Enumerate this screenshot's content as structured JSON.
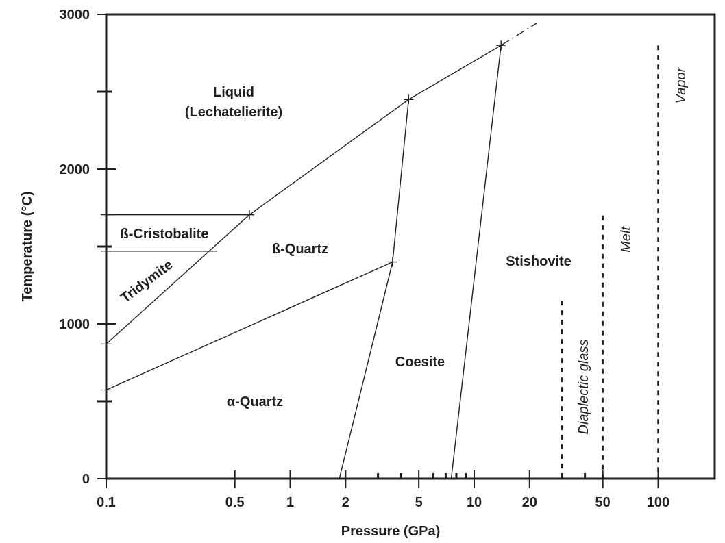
{
  "chart_data": {
    "type": "line",
    "title": "",
    "xlabel": "Pressure (GPa)",
    "ylabel": "Temperature (°C)",
    "xscale": "log",
    "xlim": [
      0.1,
      300
    ],
    "ylim": [
      0,
      3000
    ],
    "grid": false,
    "legend": null,
    "x_ticks": [
      {
        "value": 0.1,
        "label": "0.1"
      },
      {
        "value": 0.5,
        "label": "0.5"
      },
      {
        "value": 1,
        "label": "1"
      },
      {
        "value": 2,
        "label": "2"
      },
      {
        "value": 3,
        "label": ""
      },
      {
        "value": 4,
        "label": ""
      },
      {
        "value": 5,
        "label": "5"
      },
      {
        "value": 6,
        "label": ""
      },
      {
        "value": 7,
        "label": ""
      },
      {
        "value": 8,
        "label": ""
      },
      {
        "value": 9,
        "label": ""
      },
      {
        "value": 10,
        "label": "10"
      },
      {
        "value": 20,
        "label": "20"
      },
      {
        "value": 30,
        "label": ""
      },
      {
        "value": 40,
        "label": ""
      },
      {
        "value": 50,
        "label": "50"
      },
      {
        "value": 100,
        "label": "100"
      }
    ],
    "y_ticks": [
      {
        "value": 0,
        "label": "0"
      },
      {
        "value": 500,
        "label": ""
      },
      {
        "value": 1000,
        "label": "1000"
      },
      {
        "value": 1500,
        "label": ""
      },
      {
        "value": 2000,
        "label": "2000"
      },
      {
        "value": 2500,
        "label": ""
      },
      {
        "value": 3000,
        "label": "3000"
      }
    ],
    "y_minor_marks": [
      573,
      870,
      1470,
      1705
    ],
    "phase_boundaries": [
      {
        "name": "liquid-cristobalite/quartz melting curve",
        "style": "solid",
        "points": [
          [
            0.1,
            1705
          ],
          [
            0.6,
            1705
          ],
          [
            4.4,
            2450
          ],
          [
            14,
            2800
          ]
        ]
      },
      {
        "name": "melting curve extrapolation",
        "style": "dashdot",
        "points": [
          [
            14,
            2800
          ],
          [
            22,
            2945
          ]
        ]
      },
      {
        "name": "cristobalite-tridymite",
        "style": "solid",
        "points": [
          [
            0.1,
            1470
          ],
          [
            0.4,
            1470
          ]
        ]
      },
      {
        "name": "tridymite/cristobalite-beta-quartz",
        "style": "solid",
        "points": [
          [
            0.1,
            870
          ],
          [
            0.6,
            1705
          ]
        ]
      },
      {
        "name": "alpha-beta quartz",
        "style": "solid",
        "points": [
          [
            0.1,
            573
          ],
          [
            3.6,
            1400
          ]
        ]
      },
      {
        "name": "quartz-coesite",
        "style": "solid",
        "points": [
          [
            1.85,
            0
          ],
          [
            3.6,
            1400
          ],
          [
            4.4,
            2450
          ]
        ]
      },
      {
        "name": "coesite-stishovite",
        "style": "solid",
        "points": [
          [
            7.5,
            0
          ],
          [
            14,
            2800
          ]
        ]
      }
    ],
    "triple_points": [
      [
        0.6,
        1705
      ],
      [
        3.6,
        1400
      ],
      [
        4.4,
        2450
      ],
      [
        14,
        2800
      ]
    ],
    "shock_regimes": [
      {
        "pressure": 30,
        "t_top": 1150,
        "label": "Diaplectic glass"
      },
      {
        "pressure": 50,
        "t_top": 1700,
        "label": "Melt"
      },
      {
        "pressure": 100,
        "t_top": 2800,
        "label": "Vapor"
      }
    ],
    "phase_labels": [
      {
        "text": "Liquid",
        "p": 0.85,
        "t": 2500
      },
      {
        "text": "(Lechatelierite)",
        "p": 0.85,
        "t": 2380
      },
      {
        "text": "ß-Cristobalite",
        "p": 0.22,
        "t": 1580
      },
      {
        "text": "Tridymite",
        "p": 0.2,
        "t": 1180
      },
      {
        "text": "ß-Quartz",
        "p": 0.85,
        "t": 1480
      },
      {
        "text": "α-Quartz",
        "p": 0.85,
        "t": 500
      },
      {
        "text": "Coesite",
        "p": 4.2,
        "t": 750
      },
      {
        "text": "Stishovite",
        "p": 18,
        "t": 1400
      }
    ]
  },
  "axes": {
    "xlabel": "Pressure (GPa)",
    "ylabel": "Temperature (°C)"
  }
}
